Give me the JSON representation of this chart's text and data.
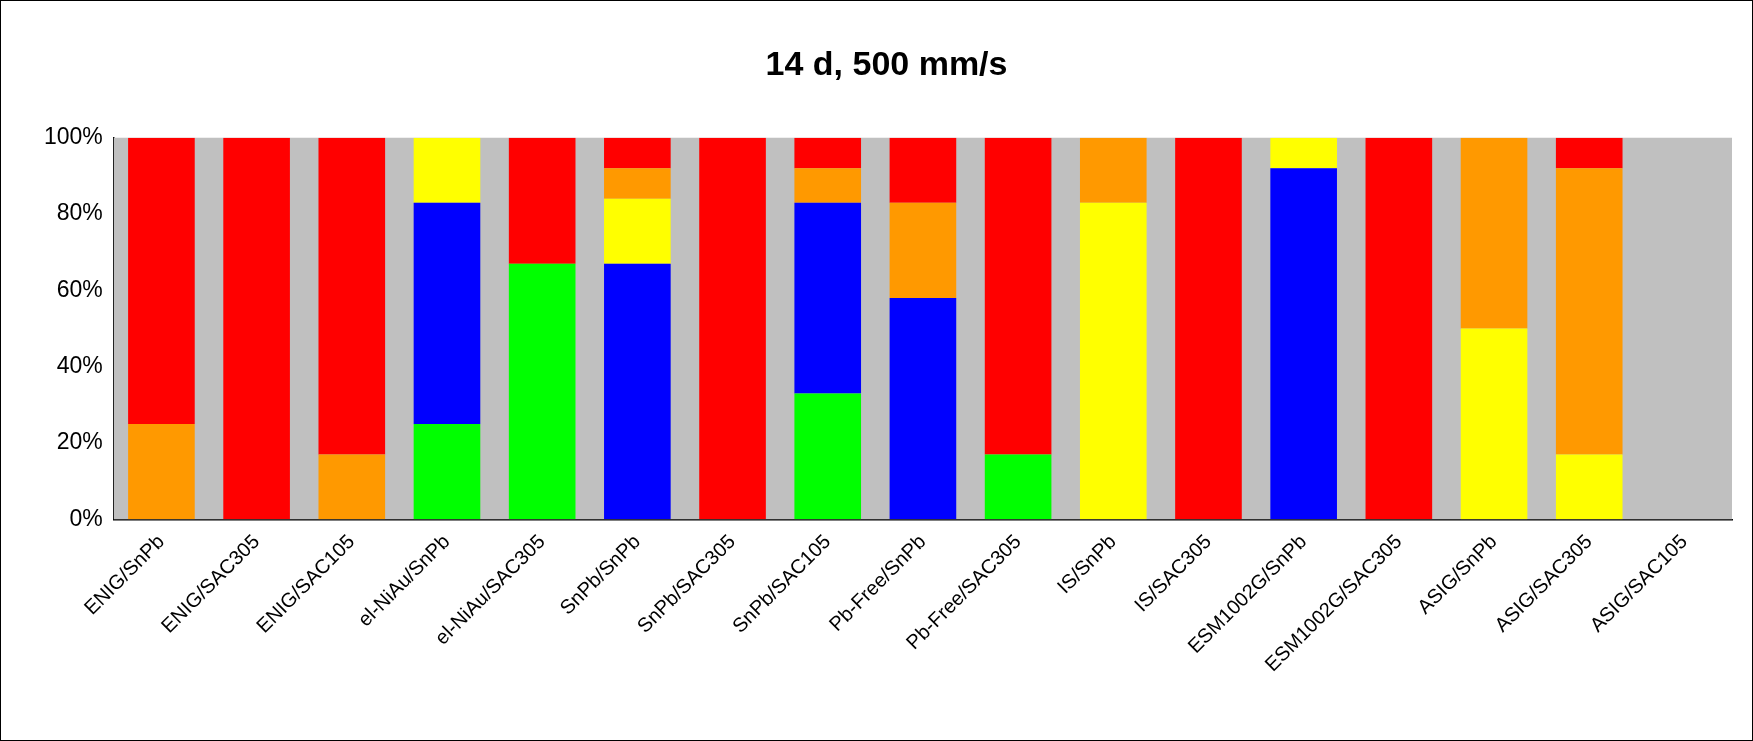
{
  "chart_data": {
    "type": "bar",
    "title": "14 d, 500 mm/s",
    "stacked": true,
    "categories": [
      "ENIG/SnPb",
      "ENIG/SAC305",
      "ENIG/SAC105",
      "el-NiAu/SnPb",
      "el-NiAu/SAC305",
      "SnPb/SnPb",
      "SnPb/SAC305",
      "SnPb/SAC105",
      "Pb-Free/SnPb",
      "Pb-Free/SAC305",
      "IS/SnPb",
      "IS/SAC305",
      "ESM1002G/SnPb",
      "ESM1002G/SAC305",
      "ASIG/SnPb",
      "ASIG/SAC305",
      "ASIG/SAC105"
    ],
    "series": [
      {
        "color": "#00ff00",
        "values": [
          0,
          0,
          0,
          25,
          67,
          0,
          0,
          33,
          0,
          17,
          0,
          0,
          0,
          0,
          0,
          0,
          0
        ]
      },
      {
        "color": "#0000ff",
        "values": [
          0,
          0,
          0,
          58,
          0,
          67,
          0,
          50,
          58,
          0,
          0,
          0,
          92,
          0,
          0,
          0,
          0
        ]
      },
      {
        "color": "#ffff00",
        "values": [
          0,
          0,
          0,
          17,
          0,
          17,
          0,
          0,
          0,
          0,
          83,
          0,
          8,
          0,
          50,
          17,
          0
        ]
      },
      {
        "color": "#ff9900",
        "values": [
          25,
          0,
          17,
          0,
          0,
          8,
          0,
          9,
          25,
          0,
          17,
          0,
          0,
          0,
          50,
          75,
          0
        ]
      },
      {
        "color": "#ff0000",
        "values": [
          75,
          100,
          83,
          0,
          33,
          8,
          100,
          8,
          17,
          83,
          0,
          100,
          0,
          100,
          0,
          8,
          0
        ]
      }
    ],
    "ylim": [
      0,
      100
    ],
    "yticks": [
      {
        "value": 0,
        "label": "0%"
      },
      {
        "value": 20,
        "label": "20%"
      },
      {
        "value": 40,
        "label": "40%"
      },
      {
        "value": 60,
        "label": "60%"
      },
      {
        "value": 80,
        "label": "80%"
      },
      {
        "value": 100,
        "label": "100%"
      }
    ],
    "grid": false
  }
}
